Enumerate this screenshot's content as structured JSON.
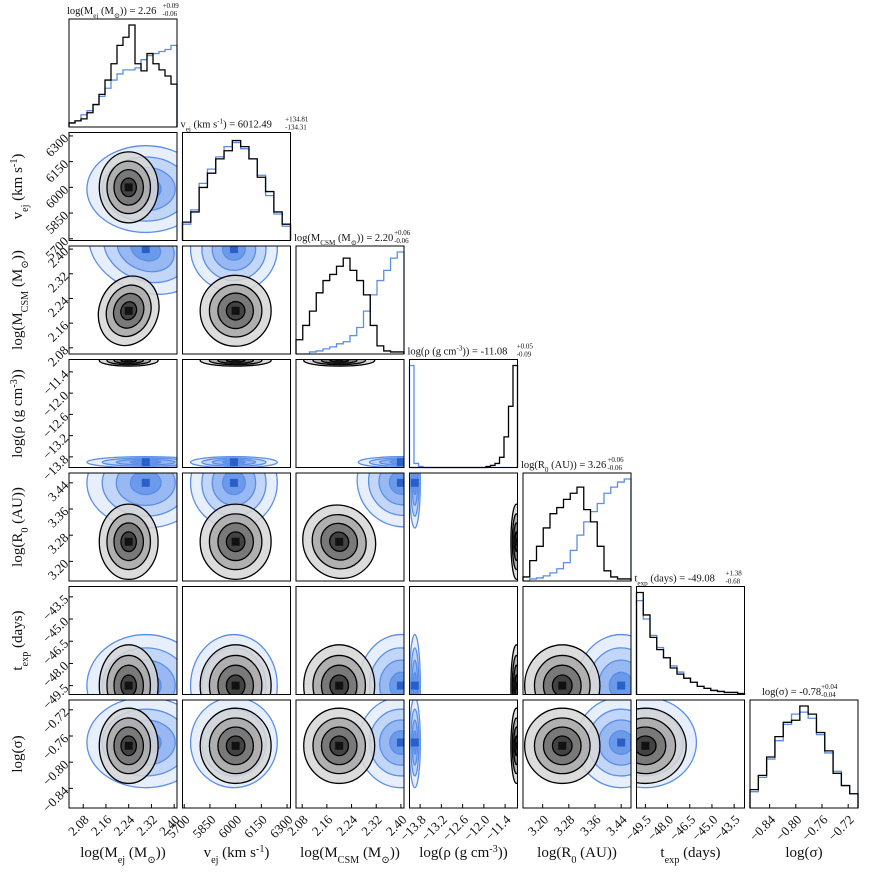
{
  "chart_data": {
    "type": "corner",
    "params": [
      {
        "key": "mej",
        "label": "log(M_ej (M_⊙))",
        "range": [
          2.03,
          2.41
        ],
        "ticks": [
          "2.08",
          "2.16",
          "2.24",
          "2.32",
          "2.40"
        ],
        "tick_values": [
          2.08,
          2.16,
          2.24,
          2.32,
          2.4
        ],
        "title": {
          "name": "log(M_ej (M_⊙))",
          "value": "2.26",
          "plus": "+0.09",
          "minus": "-0.06"
        }
      },
      {
        "key": "vej",
        "label": "v_ej (km s^-1)",
        "range": [
          5690,
          6320
        ],
        "ticks": [
          "5700",
          "5850",
          "6000",
          "6150",
          "6300"
        ],
        "tick_values": [
          5700,
          5850,
          6000,
          6150,
          6300
        ],
        "title": {
          "name": "v_ej (km s^-1)",
          "value": "6012.49",
          "plus": "+134.81",
          "minus": "-134.31"
        }
      },
      {
        "key": "mcsm",
        "label": "log(M_CSM (M_⊙))",
        "range": [
          2.06,
          2.41
        ],
        "ticks": [
          "2.08",
          "2.16",
          "2.24",
          "2.32",
          "2.40"
        ],
        "tick_values": [
          2.08,
          2.16,
          2.24,
          2.32,
          2.4
        ],
        "title": {
          "name": "log(M_CSM (M_⊙))",
          "value": "2.20",
          "plus": "+0.06",
          "minus": "-0.06"
        }
      },
      {
        "key": "rho",
        "label": "log(ρ (g cm^-3))",
        "range": [
          -14.1,
          -11.05
        ],
        "ticks": [
          "−13.8",
          "−13.2",
          "−12.6",
          "−12.0",
          "−11.4"
        ],
        "tick_values": [
          -13.8,
          -13.2,
          -12.6,
          -12.0,
          -11.4
        ],
        "title": {
          "name": "log(ρ (g cm^-3))",
          "value": "-11.08",
          "plus": "+0.05",
          "minus": "-0.09"
        }
      },
      {
        "key": "r0",
        "label": "log(R_0 (AU))",
        "range": [
          3.14,
          3.47
        ],
        "ticks": [
          "3.20",
          "3.28",
          "3.36",
          "3.44"
        ],
        "tick_values": [
          3.2,
          3.28,
          3.36,
          3.44
        ],
        "title": {
          "name": "log(R_0 (AU))",
          "value": "3.26",
          "plus": "+0.06",
          "minus": "-0.06"
        }
      },
      {
        "key": "texp",
        "label": "t_exp (days)",
        "range": [
          -50.1,
          -42.8
        ],
        "ticks": [
          "−49.5",
          "−48.0",
          "−46.5",
          "−45.0",
          "−43.5"
        ],
        "tick_values": [
          -49.5,
          -48.0,
          -46.5,
          -45.0,
          -43.5
        ],
        "title": {
          "name": "t_exp (days)",
          "value": "-49.08",
          "plus": "+1.38",
          "minus": "-0.68"
        }
      },
      {
        "key": "sigma",
        "label": "log(σ)",
        "range": [
          -0.87,
          -0.705
        ],
        "ticks": [
          "−0.84",
          "−0.80",
          "−0.76",
          "−0.72"
        ],
        "tick_values": [
          -0.84,
          -0.8,
          -0.76,
          -0.72
        ],
        "title": {
          "name": "log(σ)",
          "value": "-0.78",
          "plus": "+0.04",
          "minus": "-0.04"
        }
      }
    ],
    "series": [
      {
        "color": "#000000",
        "fill_palette": [
          "#3a3a3a",
          "#707070",
          "#a8a8a8",
          "#d6d6d6"
        ],
        "centers": {
          "mej": 2.24,
          "vej": 6000,
          "mcsm": 2.2,
          "rho": -11.08,
          "r0": 3.26,
          "texp": -49.5,
          "sigma": -0.775
        },
        "widths": {
          "mej": 0.045,
          "vej": 90,
          "mcsm": 0.05,
          "rho": 0.02,
          "r0": 0.05,
          "texp": 1.2,
          "sigma": 0.025
        },
        "marginals": {
          "mej": [
            0.04,
            0.06,
            0.08,
            0.14,
            0.22,
            0.32,
            0.46,
            0.62,
            0.8,
            0.88,
            1.0,
            0.62,
            0.55,
            0.72,
            0.62,
            0.56,
            0.5,
            0.42
          ],
          "vej": [
            0.18,
            0.28,
            0.52,
            0.66,
            0.8,
            0.88,
            0.98,
            0.92,
            0.8,
            0.62,
            0.48,
            0.28,
            0.16
          ],
          "mcsm": [
            0.14,
            0.28,
            0.42,
            0.6,
            0.72,
            0.78,
            0.86,
            0.94,
            0.82,
            0.72,
            0.58,
            0.28,
            0.08,
            0.03,
            0.02,
            0.02
          ],
          "rho": [
            0.0,
            0.0,
            0.0,
            0.0,
            0.0,
            0.0,
            0.0,
            0.0,
            0.0,
            0.0,
            0.0,
            0.0,
            0.0,
            0.0,
            0.0,
            0.0,
            0.0,
            0.01,
            0.02,
            0.04,
            0.1,
            0.3,
            0.6,
            1.0
          ],
          "r0": [
            0.04,
            0.2,
            0.34,
            0.52,
            0.66,
            0.72,
            0.8,
            0.86,
            0.92,
            0.7,
            0.58,
            0.34,
            0.1,
            0.04,
            0.02,
            0.02
          ],
          "texp": [
            1.0,
            0.78,
            0.56,
            0.44,
            0.36,
            0.26,
            0.2,
            0.16,
            0.12,
            0.08,
            0.06,
            0.04,
            0.03,
            0.02,
            0.02,
            0.01
          ],
          "sigma": [
            0.18,
            0.32,
            0.5,
            0.7,
            0.84,
            0.86,
            1.0,
            0.92,
            0.74,
            0.56,
            0.34,
            0.22,
            0.14
          ]
        }
      },
      {
        "color": "#5b8ee6",
        "fill_palette": [
          "#4f86e6",
          "#79a4ee",
          "#a9c4f4",
          "#d8e5fa"
        ],
        "centers": {
          "mej": 2.3,
          "vej": 5990,
          "mcsm": 2.4,
          "rho": -13.95,
          "r0": 3.44,
          "texp": -49.5,
          "sigma": -0.77
        },
        "widths": {
          "mej": 0.09,
          "vej": 110,
          "mcsm": 0.06,
          "rho": 0.06,
          "r0": 0.06,
          "texp": 1.5,
          "sigma": 0.03
        },
        "marginals": {
          "mej": [
            0.04,
            0.06,
            0.12,
            0.16,
            0.22,
            0.3,
            0.38,
            0.46,
            0.52,
            0.56,
            0.56,
            0.58,
            0.66,
            0.7,
            0.72,
            0.74,
            0.76,
            0.8
          ],
          "vej": [
            0.16,
            0.3,
            0.56,
            0.7,
            0.82,
            0.92,
            0.96,
            0.9,
            0.8,
            0.64,
            0.44,
            0.26,
            0.14
          ],
          "mcsm": [
            0.0,
            0.0,
            0.02,
            0.03,
            0.05,
            0.07,
            0.1,
            0.12,
            0.18,
            0.26,
            0.42,
            0.58,
            0.72,
            0.82,
            0.94,
            1.0
          ],
          "rho": [
            1.0,
            0.04,
            0.01,
            0,
            0,
            0,
            0,
            0,
            0,
            0,
            0,
            0,
            0,
            0,
            0,
            0,
            0,
            0,
            0,
            0,
            0,
            0,
            0,
            0
          ],
          "r0": [
            0.0,
            0.02,
            0.03,
            0.05,
            0.08,
            0.12,
            0.18,
            0.3,
            0.45,
            0.58,
            0.68,
            0.76,
            0.86,
            0.92,
            0.97,
            1.0
          ],
          "texp": [
            0.92,
            0.74,
            0.58,
            0.46,
            0.36,
            0.28,
            0.22,
            0.16,
            0.12,
            0.08,
            0.06,
            0.04,
            0.03,
            0.02,
            0.02,
            0.01
          ],
          "sigma": [
            0.16,
            0.3,
            0.48,
            0.66,
            0.82,
            0.92,
            0.94,
            0.88,
            0.72,
            0.54,
            0.36,
            0.22,
            0.14
          ]
        }
      }
    ]
  }
}
